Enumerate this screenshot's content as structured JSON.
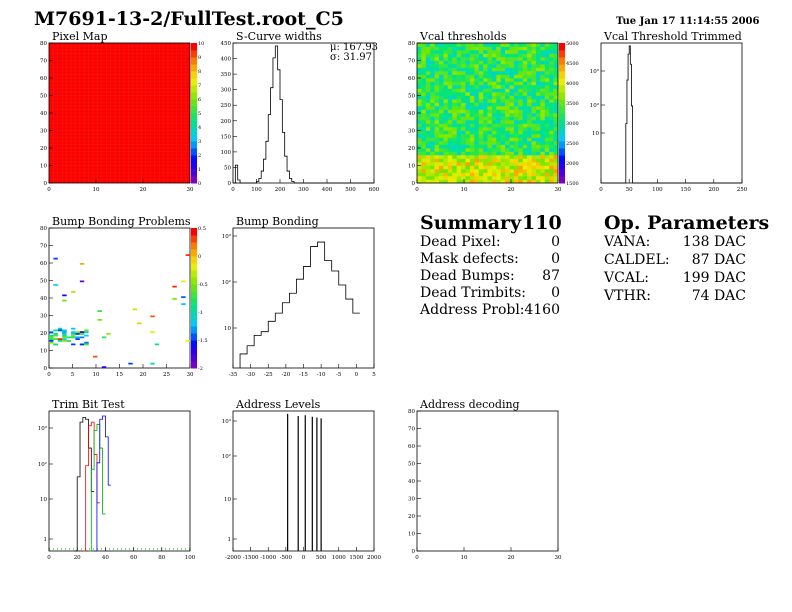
{
  "header": {
    "title": "M7691-13-2/FullTest.root_C5",
    "timestamp": "Tue Jan 17 11:14:55 2006"
  },
  "plots": {
    "pixel_map": {
      "title": "Pixel Map"
    },
    "scurve": {
      "title": "S-Curve widths",
      "stat_mu": "μ: 167.93",
      "stat_sigma": "σ: 31.97"
    },
    "vcal_thr": {
      "title": "Vcal thresholds"
    },
    "vcal_trim": {
      "title": "Vcal Threshold Trimmed"
    },
    "bump_problems": {
      "title": "Bump Bonding Problems"
    },
    "bump_bonding": {
      "title": "Bump Bonding"
    },
    "trim_bit": {
      "title": "Trim Bit Test"
    },
    "address_levels": {
      "title": "Address Levels"
    },
    "address_decoding": {
      "title": "Address decoding"
    }
  },
  "summary": {
    "title": "Summary",
    "total": "110",
    "rows": [
      {
        "label": "Dead Pixel:",
        "value": "0"
      },
      {
        "label": "Mask defects:",
        "value": "0"
      },
      {
        "label": "Dead Bumps:",
        "value": "87"
      },
      {
        "label": "Dead Trimbits:",
        "value": "0"
      },
      {
        "label": "Address Probl:",
        "value": "4160"
      }
    ]
  },
  "op_params": {
    "title": "Op. Parameters",
    "rows": [
      {
        "label": "VANA:",
        "value": "138 DAC"
      },
      {
        "label": "CALDEL:",
        "value": "87 DAC"
      },
      {
        "label": "VCAL:",
        "value": "199 DAC"
      },
      {
        "label": "VTHR:",
        "value": "74 DAC"
      }
    ]
  },
  "chart_data": [
    {
      "id": "pixel_map",
      "type": "heatmap",
      "title": "Pixel Map",
      "xlim": [
        0,
        32
      ],
      "ylim": [
        0,
        80
      ],
      "xticks": [
        "0",
        "10",
        "20",
        "30"
      ],
      "yticks": [
        "0",
        "10",
        "20",
        "30",
        "40",
        "50",
        "60",
        "70",
        "80"
      ],
      "zlim": [
        0,
        10
      ],
      "zticks": [
        "0",
        "1",
        "2",
        "3",
        "4",
        "5",
        "6",
        "7",
        "8",
        "9",
        "10"
      ],
      "uniform_value": 10
    },
    {
      "id": "scurve",
      "type": "line",
      "title": "S-Curve widths",
      "xlim": [
        0,
        600
      ],
      "ylim": [
        0,
        470
      ],
      "xticks": [
        "0",
        "100",
        "200",
        "300",
        "400",
        "500",
        "600"
      ],
      "yticks": [
        "0",
        "50",
        "100",
        "150",
        "200",
        "250",
        "300",
        "350",
        "400",
        "450"
      ],
      "x": [
        0,
        10,
        20,
        30,
        40,
        90,
        100,
        110,
        120,
        130,
        140,
        150,
        160,
        170,
        180,
        190,
        200,
        210,
        220,
        230,
        240,
        250,
        260,
        600
      ],
      "y": [
        0,
        60,
        10,
        0,
        0,
        0,
        5,
        15,
        40,
        80,
        140,
        230,
        320,
        420,
        460,
        380,
        280,
        170,
        90,
        40,
        15,
        5,
        0,
        0
      ]
    },
    {
      "id": "vcal_thr",
      "type": "heatmap",
      "title": "Vcal thresholds",
      "xlim": [
        0,
        32
      ],
      "ylim": [
        0,
        80
      ],
      "xticks": [
        "0",
        "10",
        "20",
        "30"
      ],
      "yticks": [
        "0",
        "10",
        "20",
        "30",
        "40",
        "50",
        "60",
        "70",
        "80"
      ],
      "zlim": [
        1500,
        5000
      ],
      "zticks": [
        "1500",
        "2000",
        "2500",
        "3000",
        "3500",
        "4000",
        "4500",
        "5000"
      ]
    },
    {
      "id": "vcal_trim",
      "type": "line",
      "title": "Vcal Threshold Trimmed",
      "log_y": true,
      "xlim": [
        0,
        250
      ],
      "ylim": [
        0.5,
        3000
      ],
      "xticks": [
        "0",
        "50",
        "100",
        "150",
        "200",
        "250"
      ],
      "yticks": [
        "10",
        "10²",
        "10³"
      ],
      "x": [
        0,
        42,
        44,
        46,
        48,
        50,
        52,
        54,
        56,
        250
      ],
      "y": [
        0.5,
        0.5,
        20,
        300,
        1500,
        2500,
        800,
        60,
        0.5,
        0.5
      ]
    },
    {
      "id": "bump_problems",
      "type": "scatter",
      "title": "Bump Bonding Problems",
      "xlim": [
        0,
        32
      ],
      "ylim": [
        0,
        80
      ],
      "xticks": [
        "0",
        "5",
        "10",
        "15",
        "20",
        "25",
        "30"
      ],
      "yticks": [
        "0",
        "10",
        "20",
        "30",
        "40",
        "50",
        "60",
        "70",
        "80"
      ],
      "zlim": [
        -2,
        0.5
      ],
      "zticks": [
        "0.5",
        "0",
        "-0.5",
        "-1",
        "-1.5",
        "-2"
      ]
    },
    {
      "id": "bump_bonding",
      "type": "line",
      "title": "Bump Bonding",
      "log_y": true,
      "xlim": [
        -35,
        5
      ],
      "ylim": [
        1,
        1000
      ],
      "xticks": [
        "-35",
        "-30",
        "-25",
        "-20",
        "-15",
        "-10",
        "-5",
        "0",
        "5"
      ],
      "yticks": [
        "10",
        "10²",
        "10³"
      ],
      "x": [
        -33,
        -31,
        -29,
        -27,
        -25,
        -23,
        -21,
        -19,
        -17,
        -15,
        -13,
        -11,
        -9,
        -7,
        -5,
        -3,
        -1,
        1
      ],
      "y": [
        2,
        3,
        5,
        6,
        10,
        15,
        25,
        40,
        80,
        150,
        400,
        500,
        200,
        120,
        60,
        30,
        15,
        5
      ]
    },
    {
      "id": "trim_bit",
      "type": "line",
      "title": "Trim Bit Test",
      "log_y": true,
      "xlim": [
        0,
        100
      ],
      "ylim": [
        0.5,
        3000
      ],
      "xticks": [
        "0",
        "20",
        "40",
        "60",
        "80",
        "100"
      ],
      "yticks": [
        "1",
        "10",
        "10²",
        "10³"
      ],
      "series": [
        {
          "color": "#000000",
          "x": [
            18,
            20,
            22,
            24,
            26,
            28,
            30,
            32
          ],
          "y": [
            0.5,
            50,
            1500,
            2000,
            1800,
            300,
            20,
            0.5
          ]
        },
        {
          "color": "#ff0000",
          "x": [
            24,
            26,
            28,
            30,
            32,
            34,
            36
          ],
          "y": [
            0.5,
            100,
            1200,
            1500,
            200,
            10,
            0.5
          ]
        },
        {
          "color": "#00aa00",
          "x": [
            28,
            30,
            32,
            34,
            36,
            38,
            40
          ],
          "y": [
            0.5,
            80,
            900,
            1300,
            300,
            5,
            0.5
          ]
        },
        {
          "color": "#0000ff",
          "x": [
            32,
            34,
            36,
            38,
            40,
            42,
            44
          ],
          "y": [
            0.5,
            120,
            1800,
            2200,
            600,
            30,
            0.5
          ]
        }
      ]
    },
    {
      "id": "address_levels",
      "type": "line",
      "title": "Address Levels",
      "log_y": true,
      "xlim": [
        -2000,
        2000
      ],
      "ylim": [
        0.5,
        3000
      ],
      "xticks": [
        "-2000",
        "-1500",
        "-1000",
        "-500",
        "0",
        "500",
        "1000",
        "1500",
        "2000"
      ],
      "yticks": [
        "1",
        "10",
        "10²",
        "10³"
      ],
      "peaks_x": [
        -450,
        -150,
        50,
        250,
        380,
        500
      ],
      "peaks_y": [
        2500,
        2200,
        2300,
        2100,
        2000,
        1900
      ]
    },
    {
      "id": "address_decoding",
      "type": "heatmap",
      "title": "Address decoding",
      "xlim": [
        0,
        32
      ],
      "ylim": [
        0,
        80
      ],
      "xticks": [
        "0",
        "10",
        "20",
        "30"
      ],
      "yticks": [
        "0",
        "10",
        "20",
        "30",
        "40",
        "50",
        "60",
        "70",
        "80"
      ]
    }
  ]
}
